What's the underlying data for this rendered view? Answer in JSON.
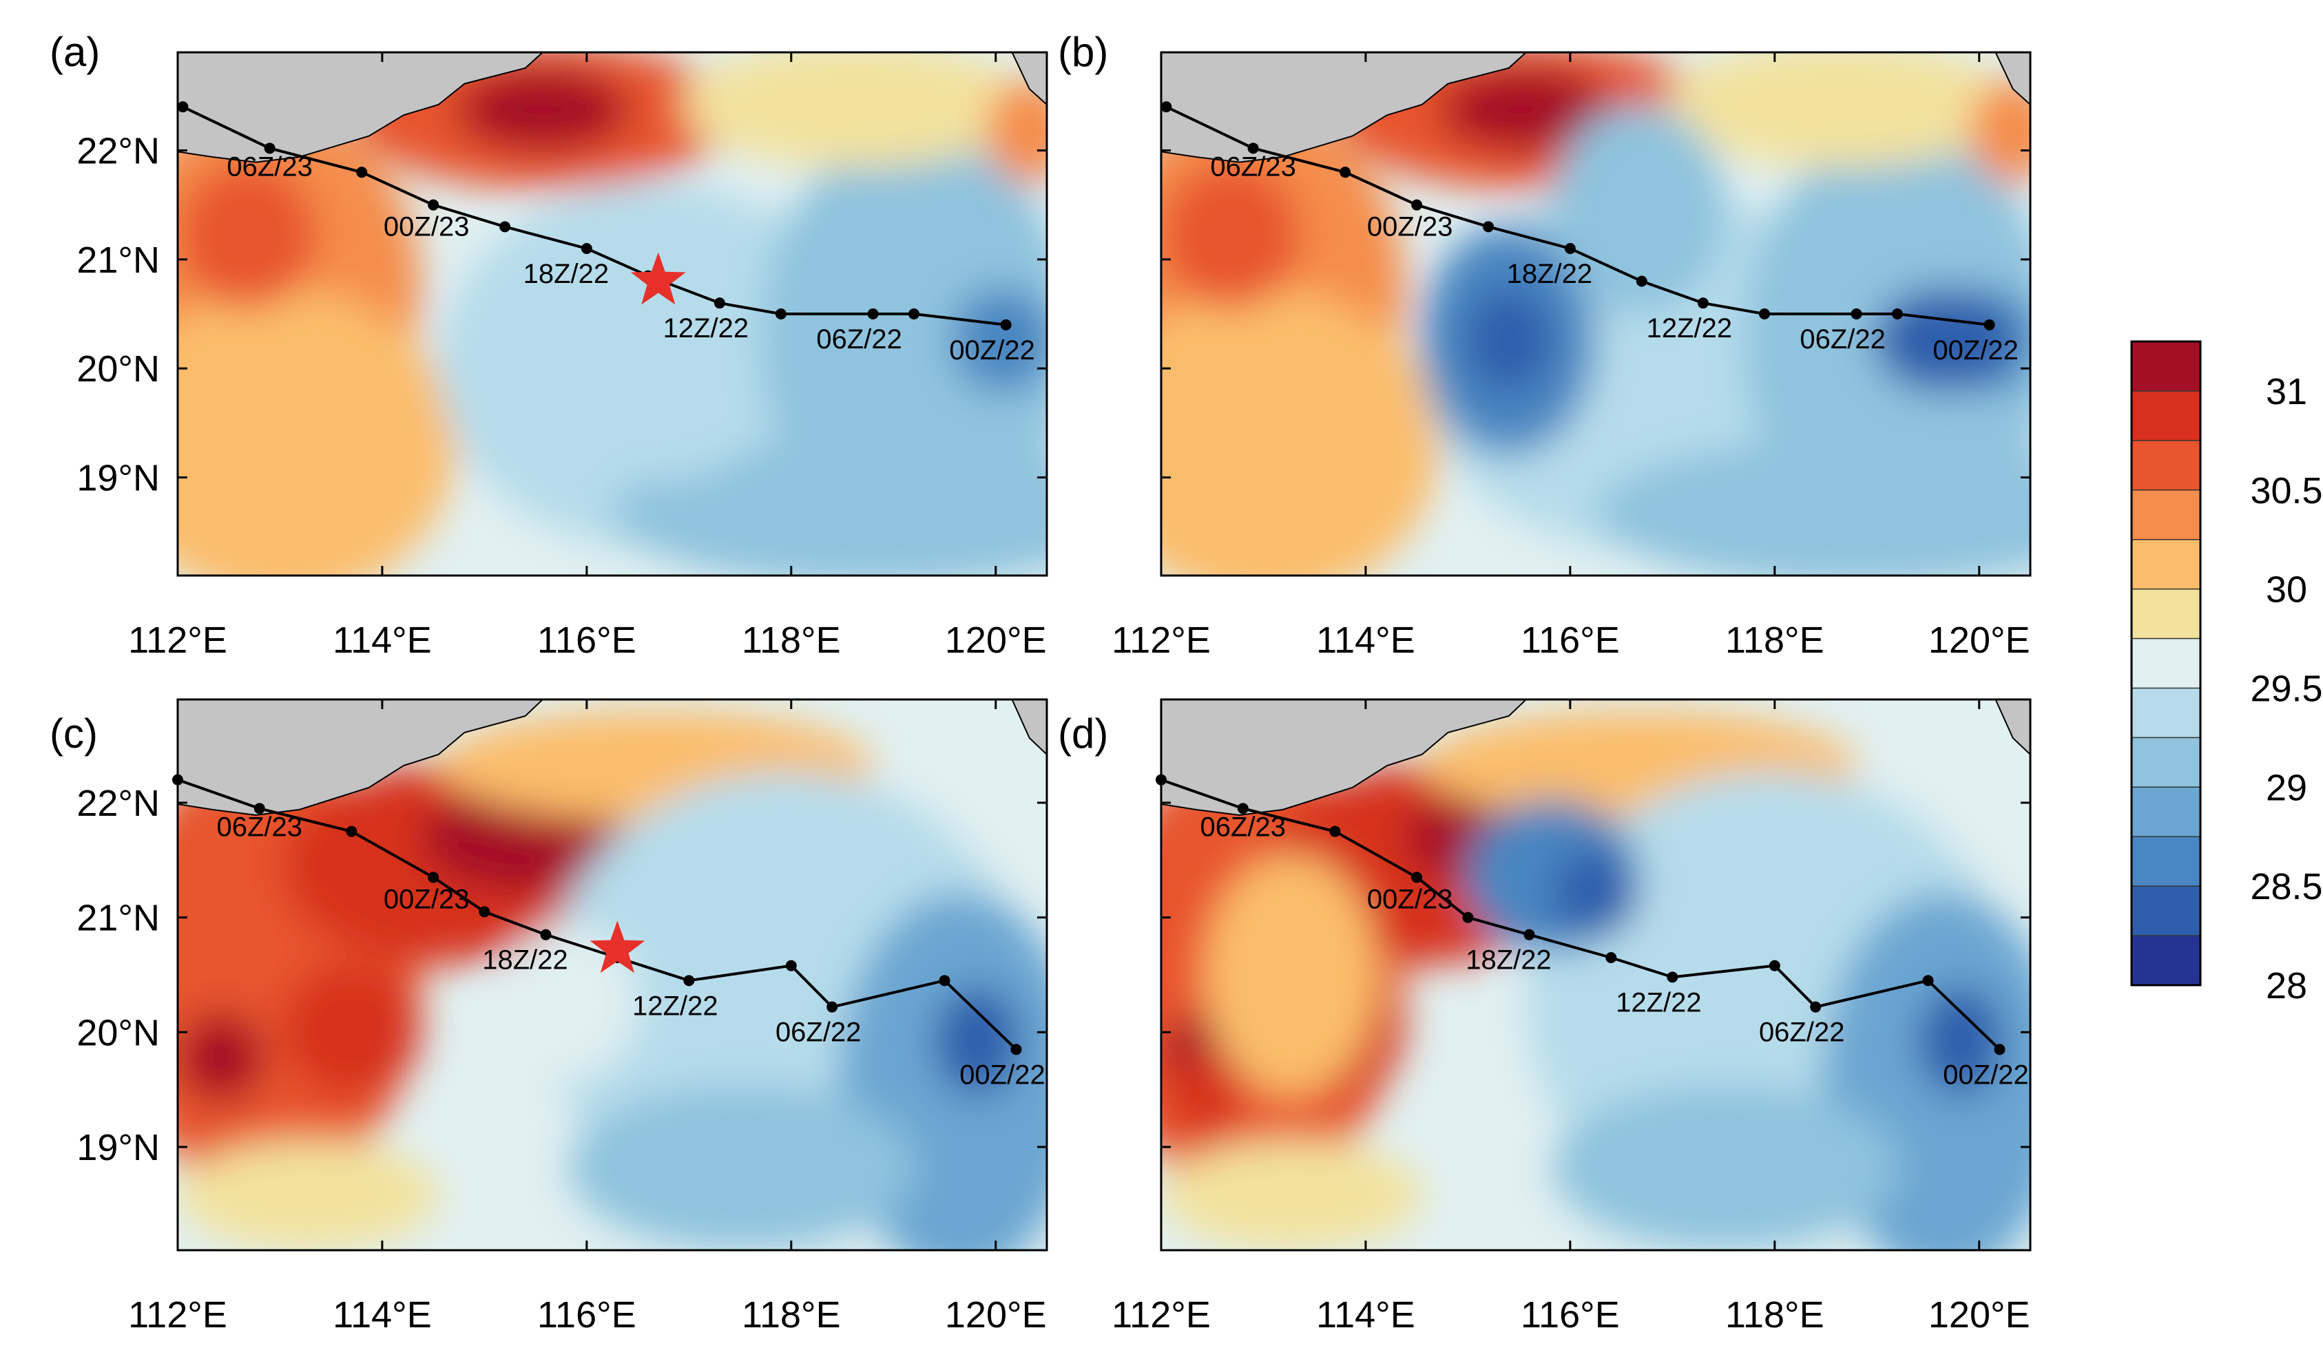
{
  "figure": {
    "x_ticks": [
      "112°E",
      "114°E",
      "116°E",
      "118°E",
      "120°E"
    ],
    "y_ticks": [
      "22°N",
      "21°N",
      "20°N",
      "19°N"
    ],
    "lon_range": [
      112,
      120.5
    ],
    "lat_range": [
      18.1,
      22.9
    ]
  },
  "colorbar": {
    "labels": [
      "31",
      "30.5",
      "30",
      "29.5",
      "29",
      "28.5",
      "28"
    ],
    "colors_high_to_low": [
      "#a50f26",
      "#d7301f",
      "#e8552e",
      "#f58d4c",
      "#fbbd6c",
      "#f3e29e",
      "#e1f0f1",
      "#b6dceb",
      "#8fc3de",
      "#6aa6d1",
      "#4a86c1",
      "#2f5fac",
      "#253494"
    ]
  },
  "colors": {
    "land": "#c4c4c4",
    "star": "#e8302a",
    "track": "#000000"
  },
  "panels": [
    {
      "label": "(a)",
      "track_labels": [
        "06Z/23",
        "00Z/23",
        "18Z/22",
        "12Z/22",
        "06Z/22",
        "00Z/22"
      ],
      "track": [
        [
          112.05,
          22.4
        ],
        [
          112.9,
          22.02
        ],
        [
          113.8,
          21.8
        ],
        [
          114.5,
          21.5
        ],
        [
          115.2,
          21.3
        ],
        [
          116.0,
          21.1
        ],
        [
          116.6,
          20.85
        ],
        [
          117.3,
          20.6
        ],
        [
          117.9,
          20.5
        ],
        [
          118.8,
          20.5
        ],
        [
          119.2,
          20.5
        ],
        [
          120.1,
          20.4
        ]
      ],
      "star": [
        116.7,
        20.8
      ]
    },
    {
      "label": "(b)",
      "track_labels": [
        "06Z/23",
        "00Z/23",
        "18Z/22",
        "12Z/22",
        "06Z/22",
        "00Z/22"
      ],
      "track": [
        [
          112.05,
          22.4
        ],
        [
          112.9,
          22.02
        ],
        [
          113.8,
          21.8
        ],
        [
          114.5,
          21.5
        ],
        [
          115.2,
          21.3
        ],
        [
          116.0,
          21.1
        ],
        [
          116.7,
          20.8
        ],
        [
          117.3,
          20.6
        ],
        [
          117.9,
          20.5
        ],
        [
          118.8,
          20.5
        ],
        [
          119.2,
          20.5
        ],
        [
          120.1,
          20.4
        ]
      ],
      "star": null
    },
    {
      "label": "(c)",
      "track_labels": [
        "06Z/23",
        "00Z/23",
        "18Z/22",
        "12Z/22",
        "06Z/22",
        "00Z/22"
      ],
      "track": [
        [
          112.0,
          22.2
        ],
        [
          112.8,
          21.95
        ],
        [
          113.7,
          21.75
        ],
        [
          114.5,
          21.35
        ],
        [
          115.0,
          21.05
        ],
        [
          115.6,
          20.85
        ],
        [
          116.3,
          20.65
        ],
        [
          117.0,
          20.45
        ],
        [
          118.0,
          20.58
        ],
        [
          118.4,
          20.22
        ],
        [
          119.5,
          20.45
        ],
        [
          120.2,
          19.85
        ]
      ],
      "star": [
        116.3,
        20.72
      ]
    },
    {
      "label": "(d)",
      "track_labels": [
        "06Z/23",
        "00Z/23",
        "18Z/22",
        "12Z/22",
        "06Z/22",
        "00Z/22"
      ],
      "track": [
        [
          112.0,
          22.2
        ],
        [
          112.8,
          21.95
        ],
        [
          113.7,
          21.75
        ],
        [
          114.5,
          21.35
        ],
        [
          115.0,
          21.0
        ],
        [
          115.6,
          20.85
        ],
        [
          116.4,
          20.65
        ],
        [
          117.0,
          20.48
        ],
        [
          118.0,
          20.58
        ],
        [
          118.4,
          20.22
        ],
        [
          119.5,
          20.45
        ],
        [
          120.2,
          19.85
        ]
      ],
      "star": null
    }
  ]
}
